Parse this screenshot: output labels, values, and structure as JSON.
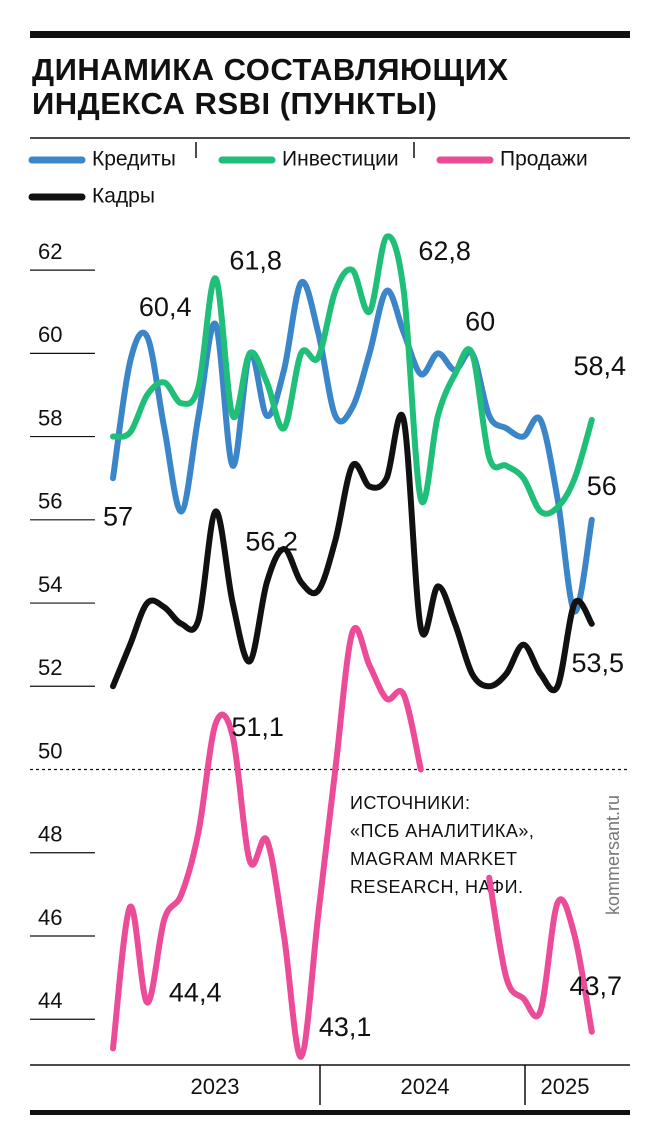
{
  "chart_data": {
    "type": "line",
    "title": [
      "ДИНАМИКА СОСТАВЛЯЮЩИХ",
      "ИНДЕКСА RSBI (ПУНКТЫ)"
    ],
    "years": [
      "2023",
      "2024",
      "2025"
    ],
    "ylim": [
      42.9,
      63.3
    ],
    "yticks": [
      44,
      46,
      48,
      50,
      52,
      54,
      56,
      58,
      60,
      62
    ],
    "baseline": 50,
    "series": [
      {
        "name": "Кредиты",
        "color": "#3a86c8",
        "values": [
          57,
          59.8,
          60.4,
          58.2,
          56.2,
          58.5,
          60.7,
          57.3,
          60,
          58.5,
          59.6,
          61.7,
          60.5,
          58.5,
          58.7,
          60,
          61.5,
          60.5,
          59.5,
          60,
          59.6,
          60,
          58.5,
          58.2,
          58,
          58.4,
          56.5,
          53.8,
          56
        ],
        "value_labels": [
          "57",
          null,
          "60,4",
          null,
          null,
          null,
          null,
          null,
          null,
          null,
          null,
          null,
          null,
          null,
          null,
          null,
          null,
          null,
          null,
          null,
          null,
          "60",
          null,
          null,
          null,
          null,
          null,
          null,
          "56"
        ]
      },
      {
        "name": "Инвестиции",
        "color": "#1fbf7a",
        "values": [
          58,
          58.1,
          59,
          59.3,
          58.8,
          59.2,
          61.8,
          58.5,
          60,
          59.3,
          58.2,
          60,
          59.9,
          61.5,
          62,
          61,
          62.8,
          61.5,
          56.5,
          58.5,
          59.5,
          60,
          57.5,
          57.3,
          57,
          56.2,
          56.3,
          57,
          58.4
        ],
        "value_labels": [
          null,
          null,
          null,
          null,
          null,
          null,
          "61,8",
          null,
          null,
          null,
          null,
          null,
          null,
          null,
          null,
          null,
          "62,8",
          null,
          null,
          null,
          null,
          null,
          null,
          null,
          null,
          null,
          null,
          null,
          "58,4"
        ]
      },
      {
        "name": "Продажи",
        "color": "#ec4b97",
        "values": [
          43.3,
          46.7,
          44.4,
          46.4,
          47,
          48.5,
          51.1,
          50.8,
          47.8,
          48.3,
          46,
          43.1,
          46.5,
          50,
          53.3,
          52.5,
          51.7,
          51.8,
          50,
          null,
          null,
          null,
          47.4,
          45,
          44.5,
          44.2,
          46.8,
          46,
          43.7
        ],
        "value_labels": [
          null,
          null,
          "44,4",
          null,
          null,
          null,
          "51,1",
          null,
          null,
          null,
          null,
          "43,1",
          null,
          null,
          null,
          null,
          null,
          null,
          null,
          null,
          null,
          null,
          null,
          null,
          null,
          null,
          null,
          null,
          "43,7"
        ]
      },
      {
        "name": "Кадры",
        "color": "#111111",
        "values": [
          52,
          53,
          54,
          53.9,
          53.5,
          53.6,
          56.2,
          54,
          52.6,
          54.5,
          55.3,
          54.5,
          54.3,
          55.5,
          57.3,
          56.8,
          57,
          58.4,
          53.4,
          54.4,
          53.5,
          52.3,
          52,
          52.3,
          53,
          52.3,
          52,
          54,
          53.5
        ],
        "value_labels": [
          null,
          null,
          null,
          null,
          null,
          null,
          "56,2",
          null,
          null,
          null,
          null,
          null,
          null,
          null,
          null,
          null,
          null,
          null,
          null,
          null,
          null,
          null,
          null,
          null,
          null,
          null,
          null,
          null,
          "53,5"
        ]
      }
    ],
    "source": [
      "ИСТОЧНИКИ:",
      "«ПСБ АНАЛИТИКА»,",
      "MAGRAM MARKET",
      "RESEARCH, НАФИ."
    ],
    "credit": "kommersant.ru"
  }
}
